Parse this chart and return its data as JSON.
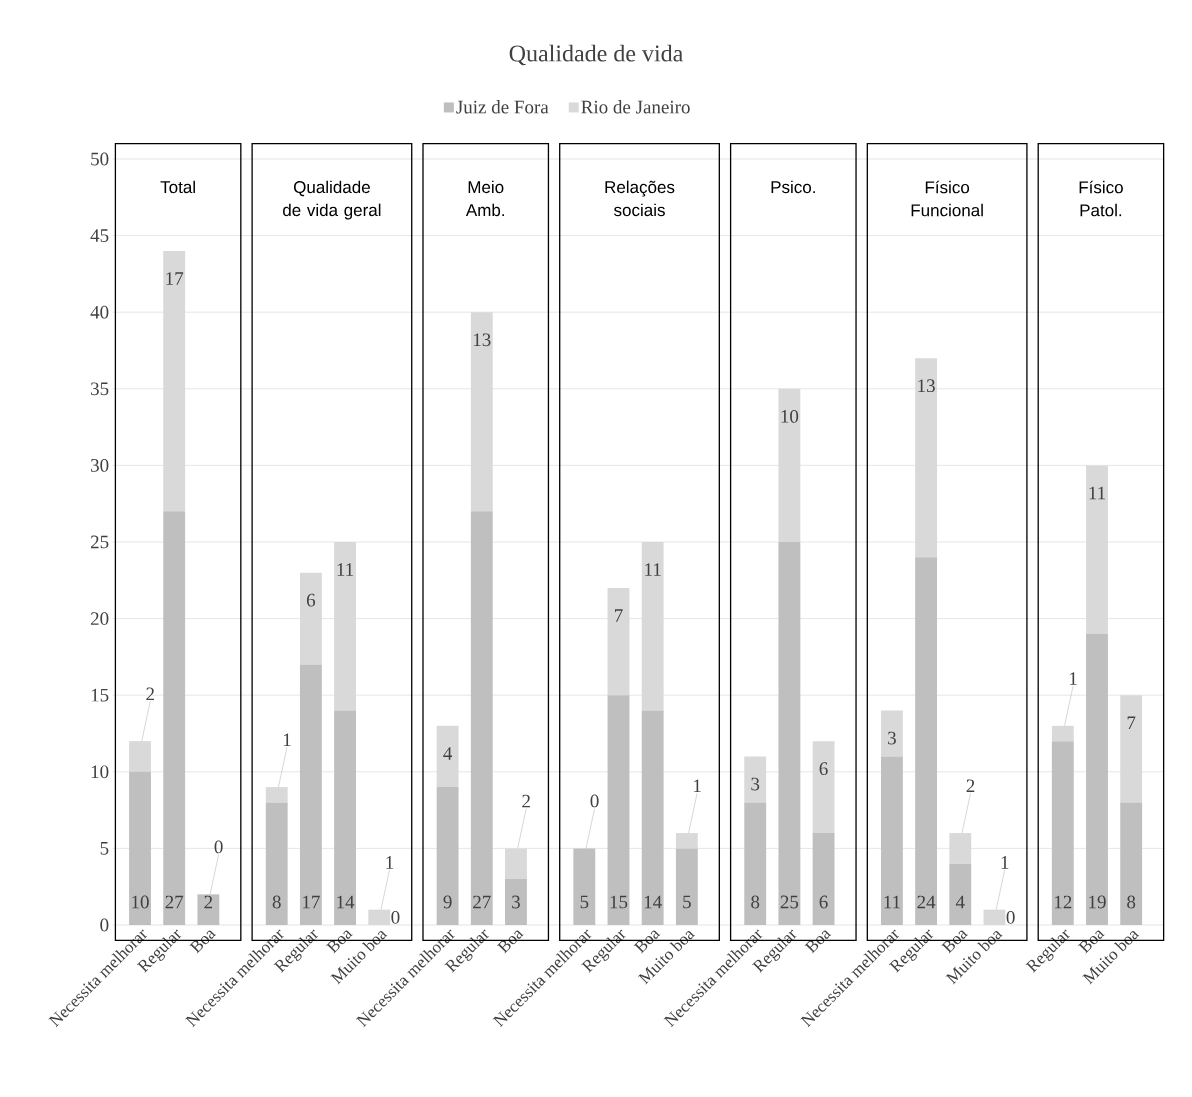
{
  "chart_data": {
    "type": "bar",
    "title": "Qualidade de vida",
    "categories": [
      "Necessita melhorar",
      "Regular",
      "Boa",
      null,
      "Necessita melhorar",
      "Regular",
      "Boa",
      "Muito boa",
      null,
      "Necessita melhorar",
      "Regular",
      "Boa",
      null,
      "Necessita melhorar",
      "Regular",
      "Boa",
      "Muito boa",
      null,
      "Necessita melhorar",
      "Regular",
      "Boa",
      null,
      "Necessita melhorar",
      "Regular",
      "Boa",
      "Muito boa",
      null,
      "Regular",
      "Boa",
      "Muito boa"
    ],
    "series": [
      {
        "name": "Juiz de Fora",
        "color": "#bfbfbf",
        "values": [
          10,
          27,
          2,
          null,
          8,
          17,
          14,
          0,
          null,
          9,
          27,
          3,
          null,
          5,
          15,
          14,
          5,
          null,
          8,
          25,
          6,
          null,
          11,
          24,
          4,
          0,
          null,
          12,
          19,
          8
        ]
      },
      {
        "name": "Rio de Janeiro",
        "color": "#d9d9d9",
        "values": [
          2,
          17,
          0,
          null,
          1,
          6,
          11,
          1,
          null,
          4,
          13,
          2,
          null,
          0,
          7,
          11,
          1,
          null,
          3,
          10,
          6,
          null,
          3,
          13,
          2,
          1,
          null,
          1,
          11,
          7
        ]
      }
    ],
    "stacked": true,
    "ylim": [
      0,
      50
    ],
    "yticks": [
      0,
      5,
      10,
      15,
      20,
      25,
      30,
      35,
      40,
      45,
      50
    ],
    "grid": "y",
    "legend": "top",
    "data_labels": true,
    "annotations": [
      "Total",
      "Qualidade de vida geral",
      "Meio Amb.",
      "Relações sociais",
      "Psico.",
      "Físico Funcional",
      "Físico Patol."
    ]
  }
}
